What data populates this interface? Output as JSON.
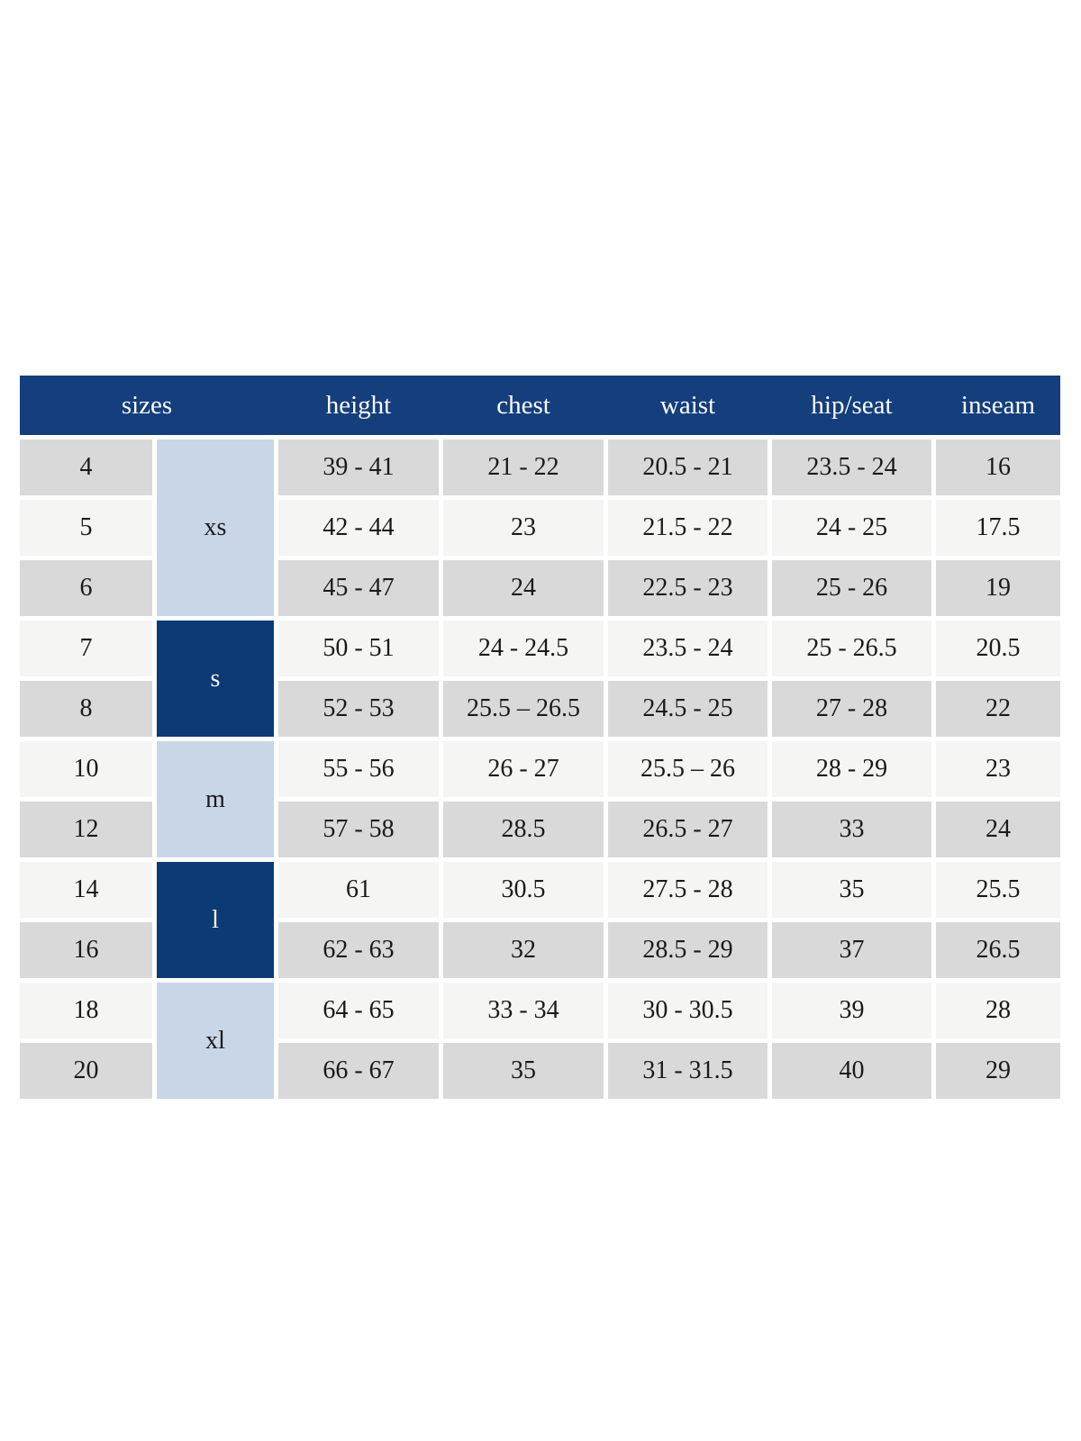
{
  "colors": {
    "header_bg": "#143e7c",
    "header_text": "#fbfcfe",
    "group_dark_bg": "#0c3a74",
    "group_light_bg": "#c9d6e7",
    "row_gray_bg": "#d9d9d9",
    "row_light_bg": "#f5f5f4",
    "body_text": "#1a1a1a",
    "page_background": "#ffffff"
  },
  "chart_data": {
    "type": "table",
    "columns": [
      "sizes",
      "height",
      "chest",
      "waist",
      "hip/seat",
      "inseam"
    ],
    "size_groups": [
      {
        "label": "xs",
        "sizes": [
          "4",
          "5",
          "6"
        ],
        "tone": "light"
      },
      {
        "label": "s",
        "sizes": [
          "7",
          "8"
        ],
        "tone": "dark"
      },
      {
        "label": "m",
        "sizes": [
          "10",
          "12"
        ],
        "tone": "light"
      },
      {
        "label": "l",
        "sizes": [
          "14",
          "16"
        ],
        "tone": "dark"
      },
      {
        "label": "xl",
        "sizes": [
          "18",
          "20"
        ],
        "tone": "light"
      }
    ],
    "rows": [
      {
        "size": "4",
        "group": "xs",
        "height": "39 - 41",
        "chest": "21 - 22",
        "waist": "20.5 - 21",
        "hip_seat": "23.5 - 24",
        "inseam": "16"
      },
      {
        "size": "5",
        "group": "xs",
        "height": "42 - 44",
        "chest": "23",
        "waist": "21.5 - 22",
        "hip_seat": "24 - 25",
        "inseam": "17.5"
      },
      {
        "size": "6",
        "group": "xs",
        "height": "45 - 47",
        "chest": "24",
        "waist": "22.5 - 23",
        "hip_seat": "25 - 26",
        "inseam": "19"
      },
      {
        "size": "7",
        "group": "s",
        "height": "50 - 51",
        "chest": "24 - 24.5",
        "waist": "23.5 - 24",
        "hip_seat": "25 - 26.5",
        "inseam": "20.5"
      },
      {
        "size": "8",
        "group": "s",
        "height": "52 - 53",
        "chest": "25.5 – 26.5",
        "waist": "24.5 - 25",
        "hip_seat": "27 - 28",
        "inseam": "22"
      },
      {
        "size": "10",
        "group": "m",
        "height": "55 - 56",
        "chest": "26 - 27",
        "waist": "25.5 – 26",
        "hip_seat": "28 - 29",
        "inseam": "23"
      },
      {
        "size": "12",
        "group": "m",
        "height": "57 - 58",
        "chest": "28.5",
        "waist": "26.5 - 27",
        "hip_seat": "33",
        "inseam": "24"
      },
      {
        "size": "14",
        "group": "l",
        "height": "61",
        "chest": "30.5",
        "waist": "27.5 - 28",
        "hip_seat": "35",
        "inseam": "25.5"
      },
      {
        "size": "16",
        "group": "l",
        "height": "62 - 63",
        "chest": "32",
        "waist": "28.5 - 29",
        "hip_seat": "37",
        "inseam": "26.5"
      },
      {
        "size": "18",
        "group": "xl",
        "height": "64 - 65",
        "chest": "33 - 34",
        "waist": "30 - 30.5",
        "hip_seat": "39",
        "inseam": "28"
      },
      {
        "size": "20",
        "group": "xl",
        "height": "66 - 67",
        "chest": "35",
        "waist": "31 - 31.5",
        "hip_seat": "40",
        "inseam": "29"
      }
    ]
  }
}
